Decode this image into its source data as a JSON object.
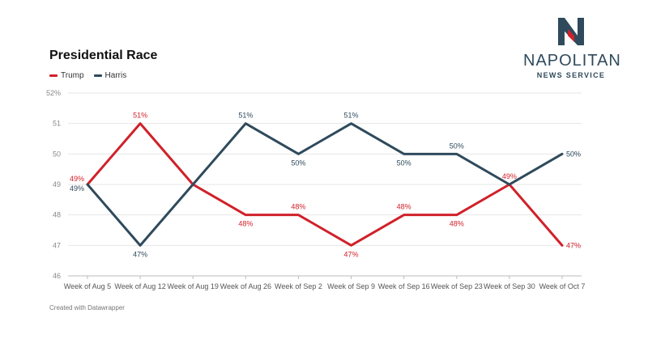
{
  "title": "Presidential Race",
  "footer": "Created with Datawrapper",
  "logo": {
    "name": "NAPOLITAN",
    "subtitle": "NEWS SERVICE",
    "color": "#2f4a5c",
    "accent": "#d0212a"
  },
  "chart_data": {
    "type": "line",
    "title": "Presidential Race",
    "categories": [
      "Week of Aug 5",
      "Week of Aug 12",
      "Week of Aug 19",
      "Week of Aug 26",
      "Week of Sep 2",
      "Week of Sep 9",
      "Week of Sep 16",
      "Week of Sep 23",
      "Week of Sep 30",
      "Week of Oct 7"
    ],
    "ylim": [
      46,
      52
    ],
    "yticks": [
      {
        "value": 46,
        "label": "46"
      },
      {
        "value": 47,
        "label": "47"
      },
      {
        "value": 48,
        "label": "48"
      },
      {
        "value": 49,
        "label": "49"
      },
      {
        "value": 50,
        "label": "50"
      },
      {
        "value": 51,
        "label": "51"
      },
      {
        "value": 52,
        "label": "52%"
      }
    ],
    "grid": true,
    "legend_position": "top-left",
    "series": [
      {
        "name": "Trump",
        "color": "#d0212a",
        "values": [
          49,
          51,
          49,
          48,
          48,
          47,
          48,
          48,
          49,
          47
        ],
        "labels": [
          "49%",
          "51%",
          "",
          "48%",
          "48%",
          "47%",
          "48%",
          "48%",
          "49%",
          "47%"
        ],
        "label_pos": [
          "left",
          "above",
          "",
          "below",
          "above",
          "below",
          "above",
          "below",
          "above",
          "right"
        ]
      },
      {
        "name": "Harris",
        "color": "#2f4a5c",
        "values": [
          49,
          47,
          49,
          51,
          50,
          51,
          50,
          50,
          49,
          50
        ],
        "labels": [
          "49%",
          "47%",
          "",
          "51%",
          "50%",
          "51%",
          "50%",
          "50%",
          "",
          "50%"
        ],
        "label_pos": [
          "left-below",
          "below",
          "",
          "above",
          "below",
          "above",
          "below",
          "above",
          "",
          "right"
        ]
      }
    ]
  }
}
